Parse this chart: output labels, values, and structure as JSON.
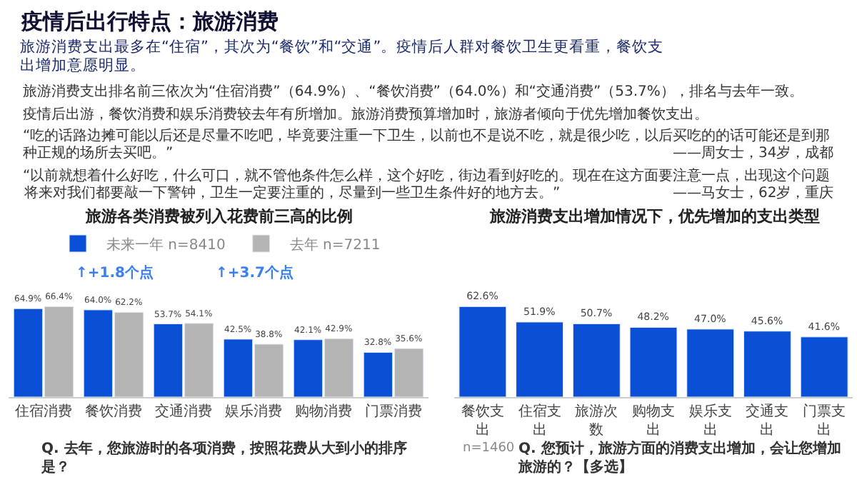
{
  "chart_data": [
    {
      "type": "other",
      "title": "疫情后出行特点：旅游消费",
      "subtitle": "旅游消费支出最多在“住宿”，其次为“餐饮”和“交通”。疫情后人群对餐饮卫生更看重，餐饮支出增加意愿明显。",
      "annotations": [
        "旅游消费支出排名前三依次为“住宿消费”（64.9%）、“餐饮消费”（64.0%）和“交通消费”（53.7%），排名与去年一致。",
        "疫情后出游，餐饮消费和娱乐消费较去年有所增加。旅游消费预算增加时，旅游者倾向于优先增加餐饮支出。",
        "“吃的话路边摊可能以后还是尽量不吃吧，毕竟要注重一下卫生，以前也不是说不吃，就是很少吃，以后买吃的的话可能还是到那种正规的场所去买吧。”",
        "——周女士，34岁，成都",
        "“以前就想着什么好吃，什么可口，就不管他条件怎么样，这个好吃，街边看到好吃的。现在在这方面要注意一点，出现这个问题将来对我们都要敲一下警钟，卫生一定要注重的，尽量到一些卫生条件好的地方去。”",
        "——马女士，62岁，重庆"
      ]
    },
    {
      "type": "bar",
      "title": "旅游各类消费被列入花费前三高的比例",
      "categories": [
        "住宿消费",
        "餐饮消费",
        "交通消费",
        "娱乐消费",
        "购物消费",
        "门票消费"
      ],
      "legend": "top",
      "series": [
        {
          "name": "未来一年 n=8410",
          "color": "#0a4fd6",
          "values": [
            64.9,
            64.0,
            53.7,
            42.5,
            42.1,
            32.8
          ],
          "value_labels": [
            "64.9%",
            "64.0%",
            "53.7%",
            "42.5%",
            "42.1%",
            "32.8%"
          ]
        },
        {
          "name": "去年 n=7211",
          "color": "#b4b4b4",
          "values": [
            66.4,
            62.2,
            54.1,
            38.8,
            42.9,
            35.6
          ],
          "value_labels": [
            "66.4%",
            "62.2%",
            "54.1%",
            "38.8%",
            "42.9%",
            "35.6%"
          ]
        }
      ],
      "annotations": [
        "↑+1.8个点",
        "↑+3.7个点",
        "Q. 去年，您旅游时的各项消费，按照花费从大到小的排序是？"
      ]
    },
    {
      "type": "bar",
      "title": "旅游消费支出增加情况下，优先增加的支出类型",
      "categories": [
        "餐饮支出",
        "住宿支出",
        "旅游次数",
        "购物支出",
        "娱乐支出",
        "交通支出",
        "门票支出"
      ],
      "series": [
        {
          "color": "#0a4fd6",
          "values": [
            62.6,
            51.9,
            50.7,
            48.2,
            47.0,
            45.6,
            41.6
          ],
          "value_labels": [
            "62.6%",
            "51.9%",
            "50.7%",
            "48.2%",
            "47.0%",
            "45.6%",
            "41.6%"
          ]
        }
      ],
      "annotations": [
        "n=1460",
        "Q. 您预计，旅游方面的消费支出增加，会让您增加旅游的？【多选】"
      ]
    }
  ]
}
